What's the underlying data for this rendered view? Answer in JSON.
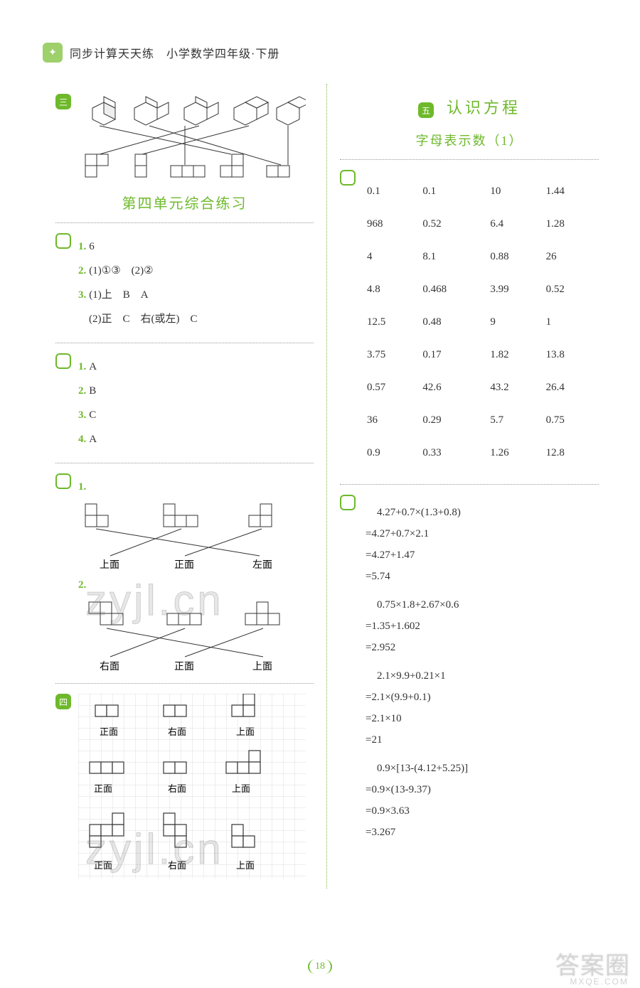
{
  "header": {
    "icon_glyph": "✦",
    "title": "同步计算天天练　小学数学四年级·下册"
  },
  "left": {
    "topdiagram": {
      "stroke": "#333333",
      "fill": "#ffffff",
      "cell": 18
    },
    "section_title": "第四单元综合练习",
    "group1": {
      "items": [
        {
          "num": "1.",
          "text": "6"
        },
        {
          "num": "2.",
          "text": "(1)①③　(2)②"
        },
        {
          "num": "3.",
          "text": "(1)上　B　A"
        },
        {
          "num": "",
          "text": "　(2)正　C　右(或左)　C"
        }
      ]
    },
    "group2": {
      "items": [
        {
          "num": "1.",
          "text": "A"
        },
        {
          "num": "2.",
          "text": "B"
        },
        {
          "num": "3.",
          "text": "C"
        },
        {
          "num": "4.",
          "text": "A"
        }
      ]
    },
    "group3": {
      "labels1": [
        "上面",
        "正面",
        "左面"
      ],
      "labels2": [
        "右面",
        "正面",
        "上面"
      ]
    },
    "group4": {
      "labels": [
        "正面",
        "右面",
        "上面"
      ]
    }
  },
  "right": {
    "unit_badge": "五",
    "unit_title": "认识方程",
    "sub_title": "字母表示数（1）",
    "table": {
      "rows": [
        [
          "0.1",
          "0.1",
          "10",
          "1.44"
        ],
        [
          "968",
          "0.52",
          "6.4",
          "1.28"
        ],
        [
          "4",
          "8.1",
          "0.88",
          "26"
        ],
        [
          "4.8",
          "0.468",
          "3.99",
          "0.52"
        ],
        [
          "12.5",
          "0.48",
          "9",
          "1"
        ],
        [
          "3.75",
          "0.17",
          "1.82",
          "13.8"
        ],
        [
          "0.57",
          "42.6",
          "43.2",
          "26.4"
        ],
        [
          "36",
          "0.29",
          "5.7",
          "0.75"
        ],
        [
          "0.9",
          "0.33",
          "1.26",
          "12.8"
        ]
      ]
    },
    "eqs": [
      {
        "first": "4.27+0.7×(1.3+0.8)",
        "steps": [
          "=4.27+0.7×2.1",
          "=4.27+1.47",
          "=5.74"
        ]
      },
      {
        "first": "0.75×1.8+2.67×0.6",
        "steps": [
          "=1.35+1.602",
          "=2.952"
        ]
      },
      {
        "first": "2.1×9.9+0.21×1",
        "steps": [
          "=2.1×(9.9+0.1)",
          "=2.1×10",
          "=21"
        ]
      },
      {
        "first": "0.9×[13-(4.12+5.25)]",
        "steps": [
          "=0.9×(13-9.37)",
          "=0.9×3.63",
          "=3.267"
        ]
      }
    ]
  },
  "page_number": "18",
  "watermark": "zyjl.cn",
  "brand": "答案圈",
  "brand_sub": "MXQE.COM",
  "colors": {
    "green": "#6eb92b",
    "grid": "#cccccc",
    "line": "#333333"
  }
}
